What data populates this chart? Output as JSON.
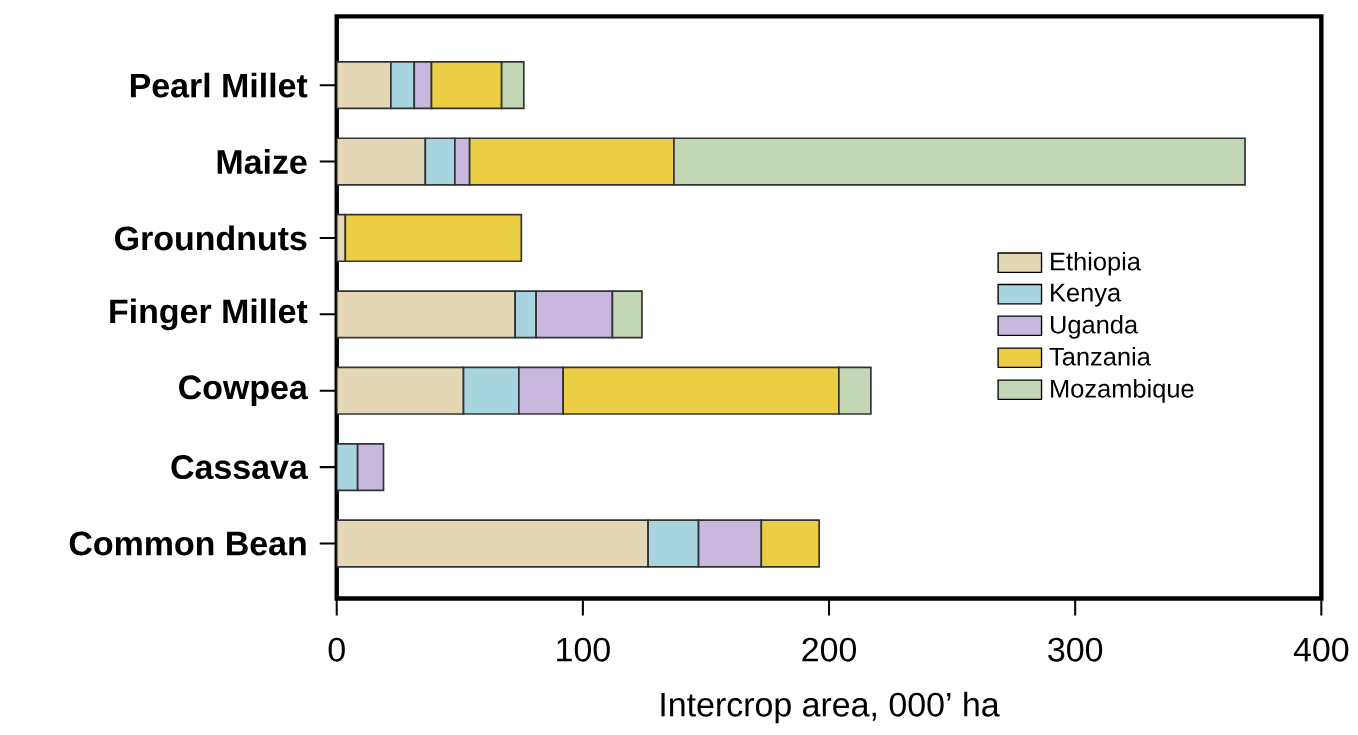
{
  "chart_data": {
    "type": "bar",
    "orientation": "horizontal",
    "stacked": true,
    "xlabel": "Intercrop area, 000’ ha",
    "categories": [
      "Pearl Millet",
      "Maize",
      "Groundnuts",
      "Finger Millet",
      "Cowpea",
      "Cassava",
      "Common Bean"
    ],
    "series": [
      {
        "name": "Ethiopia",
        "color": "#e3d7b5",
        "values": [
          22,
          36,
          3.5,
          72.5,
          51.5,
          null,
          126.5
        ]
      },
      {
        "name": "Kenya",
        "color": "#a8d4e0",
        "values": [
          9.5,
          12,
          null,
          8.5,
          22.5,
          8.5,
          20.5
        ]
      },
      {
        "name": "Uganda",
        "color": "#c8b8e0",
        "values": [
          7,
          6,
          null,
          31,
          18,
          10.5,
          25.5
        ]
      },
      {
        "name": "Tanzania",
        "color": "#ecce45",
        "values": [
          28.5,
          83,
          71.5,
          null,
          112,
          null,
          23.5
        ]
      },
      {
        "name": "Mozambique",
        "color": "#c3d7b6",
        "values": [
          9,
          232,
          null,
          12,
          13,
          null,
          null
        ]
      }
    ],
    "xlim": [
      0,
      400
    ],
    "xticks": [
      0,
      100,
      200,
      300,
      400
    ],
    "grid": false,
    "legend": "right"
  }
}
